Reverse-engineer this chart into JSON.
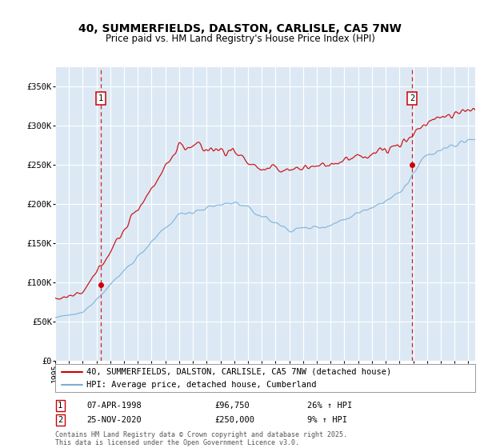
{
  "title_line1": "40, SUMMERFIELDS, DALSTON, CARLISLE, CA5 7NW",
  "title_line2": "Price paid vs. HM Land Registry's House Price Index (HPI)",
  "ylabel_ticks": [
    "£0",
    "£50K",
    "£100K",
    "£150K",
    "£200K",
    "£250K",
    "£300K",
    "£350K"
  ],
  "ylabel_values": [
    0,
    50000,
    100000,
    150000,
    200000,
    250000,
    300000,
    350000
  ],
  "ylim": [
    0,
    375000
  ],
  "sale1_year": 1998.29,
  "sale1_price": 96750,
  "sale2_year": 2020.92,
  "sale2_price": 250000,
  "sale1_date": "07-APR-1998",
  "sale1_hpi_pct": "26% ↑ HPI",
  "sale2_date": "25-NOV-2020",
  "sale2_hpi_pct": "9% ↑ HPI",
  "legend_line1": "40, SUMMERFIELDS, DALSTON, CARLISLE, CA5 7NW (detached house)",
  "legend_line2": "HPI: Average price, detached house, Cumberland",
  "footer": "Contains HM Land Registry data © Crown copyright and database right 2025.\nThis data is licensed under the Open Government Licence v3.0.",
  "line_color_red": "#cc0000",
  "line_color_blue": "#7bafd4",
  "bg_color": "#dce9f5",
  "grid_color": "#ffffff",
  "box_color": "#cc0000",
  "xlim_start": 1995.0,
  "xlim_end": 2025.5
}
